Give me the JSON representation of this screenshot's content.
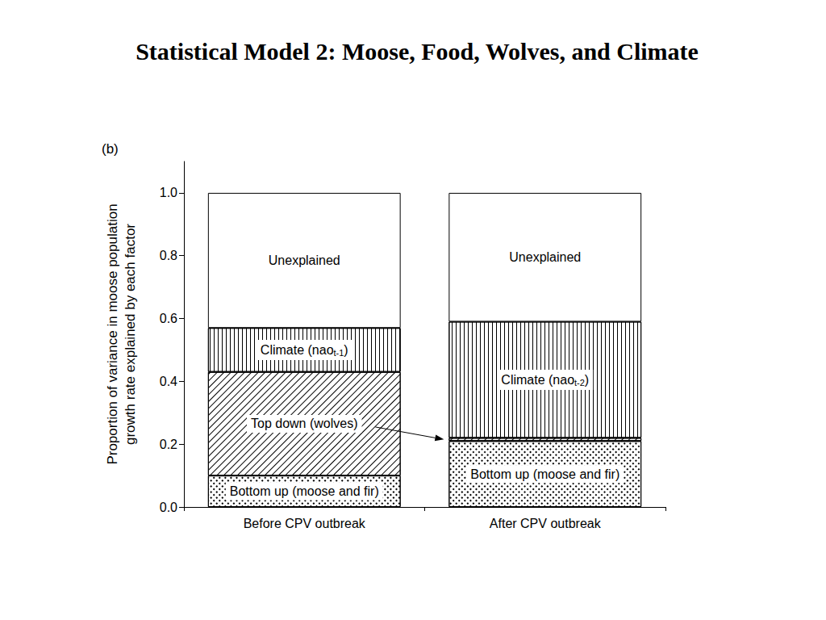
{
  "chart_data": {
    "type": "bar",
    "title": "Statistical Model 2: Moose, Food, Wolves, and Climate",
    "panel_label": "(b)",
    "y_label": "Proportion of variance in moose population\ngrowth rate explained by each factor",
    "categories": [
      "Before CPV outbreak",
      "After CPV outbreak"
    ],
    "stacked": true,
    "grid": false,
    "ylim": [
      0,
      1.1
    ],
    "yticks": [
      {
        "value": 0,
        "label": "0.0"
      },
      {
        "value": 0.2,
        "label": "0.2"
      },
      {
        "value": 0.4,
        "label": "0.4"
      },
      {
        "value": 0.6,
        "label": "0.6"
      },
      {
        "value": 0.8,
        "label": "0.8"
      },
      {
        "value": 1,
        "label": "1.0"
      }
    ],
    "series": [
      {
        "labels": [
          "Bottom up (moose and fir)",
          "Bottom up (moose and fir)"
        ],
        "color": "#ffffff",
        "values": [
          0.1,
          0.21
        ]
      },
      {
        "labels": [
          "Top down (wolves)",
          null
        ],
        "color": "#ffffff",
        "values": [
          0.33,
          0.01
        ]
      },
      {
        "labels": [
          {
            "text": "Climate (nao",
            "subscript": "t-1",
            "after": ")"
          },
          {
            "text": "Climate (nao",
            "subscript": "t-2",
            "after": ")"
          }
        ],
        "color": "#ffffff",
        "values": [
          0.14,
          0.37
        ]
      },
      {
        "labels": [
          "Unexplained",
          "Unexplained"
        ],
        "color": "#ffffff",
        "values": [
          0.43,
          0.41
        ]
      }
    ]
  }
}
